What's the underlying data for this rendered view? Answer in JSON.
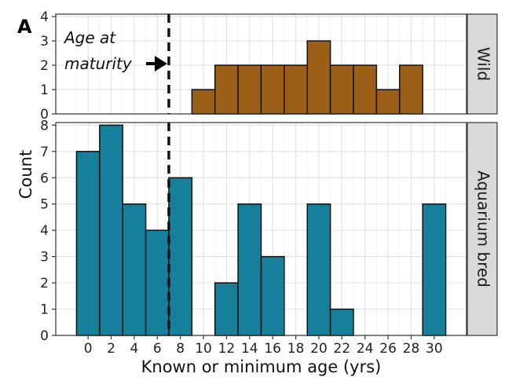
{
  "panel_tag": "A",
  "annotation": {
    "line1": "Age at",
    "line2": "maturity"
  },
  "chart_data": [
    {
      "type": "bar",
      "facet": "Wild",
      "bin_width": 2,
      "x_bin_starts": [
        9,
        11,
        13,
        15,
        17,
        19,
        21,
        23,
        25,
        27
      ],
      "values": [
        1,
        2,
        2,
        2,
        2,
        3,
        2,
        2,
        1,
        2
      ],
      "ylim": [
        0,
        4
      ],
      "yticks": [
        0,
        1,
        2,
        3,
        4
      ],
      "color": "#9C5F17"
    },
    {
      "type": "bar",
      "facet": "Aquarium bred",
      "bin_width": 2,
      "x_bin_starts": [
        -1,
        1,
        3,
        5,
        7,
        11,
        13,
        15,
        19,
        21,
        29
      ],
      "values": [
        7,
        8,
        5,
        4,
        6,
        2,
        5,
        3,
        5,
        1,
        5
      ],
      "ylim": [
        0,
        8
      ],
      "yticks": [
        0,
        1,
        2,
        3,
        4,
        5,
        6,
        7,
        8
      ],
      "color": "#167F9B"
    }
  ],
  "shared": {
    "xlabel": "Known or minimum age (yrs)",
    "ylabel": "Count",
    "xticks": [
      0,
      2,
      4,
      6,
      8,
      10,
      12,
      14,
      16,
      18,
      20,
      22,
      24,
      26,
      28,
      30
    ],
    "age_at_maturity": 7,
    "grid": true,
    "bar_edge_color": "#111111",
    "strip_fill": "#D9D9D9"
  }
}
